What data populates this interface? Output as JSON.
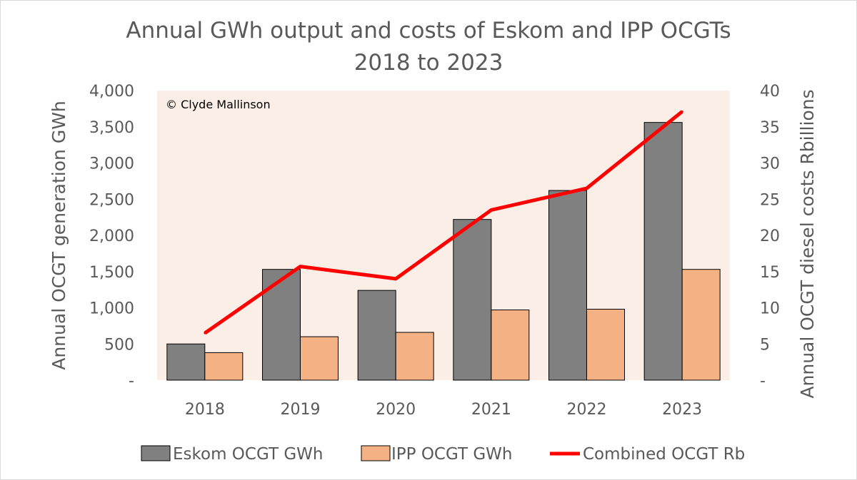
{
  "chart_data": {
    "type": "bar",
    "title": [
      "Annual GWh output and costs of Eskom and IPP OCGTs",
      "2018 to 2023"
    ],
    "categories": [
      "2018",
      "2019",
      "2020",
      "2021",
      "2022",
      "2023"
    ],
    "series": [
      {
        "name": "Eskom OCGT GWh",
        "type": "bar",
        "axis": "left",
        "color": "#808080",
        "values": [
          500,
          1530,
          1240,
          2220,
          2620,
          3560
        ]
      },
      {
        "name": "IPP OCGT GWh",
        "type": "bar",
        "axis": "left",
        "color": "#f4b183",
        "values": [
          380,
          600,
          660,
          970,
          980,
          1530
        ]
      },
      {
        "name": "Combined OCGT Rb",
        "type": "line",
        "axis": "right",
        "color": "#ff0000",
        "values": [
          6.5,
          15.7,
          14.0,
          23.5,
          26.5,
          37.1
        ]
      }
    ],
    "ylabel": "Annual OCGT generation GWh",
    "y2label": "Annual OCGT diesel costs Rbillions",
    "ylim": [
      0,
      4000
    ],
    "y2lim": [
      0,
      40
    ],
    "yticks": [
      "-",
      "500",
      "1,000",
      "1,500",
      "2,000",
      "2,500",
      "3,000",
      "3,500",
      "4,000"
    ],
    "y2ticks": [
      "-",
      "5",
      "10",
      "15",
      "20",
      "25",
      "30",
      "35",
      "40"
    ],
    "plot_background": "#fbeee6",
    "grid": false,
    "legend_position": "bottom",
    "annotation": "© Clyde Mallinson"
  }
}
